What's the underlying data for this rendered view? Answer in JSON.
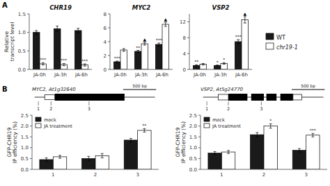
{
  "chart_data": [
    {
      "type": "bar",
      "title": "CHR19",
      "ylabel": "Relative\ntranscript level",
      "categories": [
        "JA-0h",
        "JA-3h",
        "JA-6h"
      ],
      "series": [
        {
          "name": "WT",
          "color": "#1a1a1a",
          "values": [
            1.0,
            1.1,
            1.05
          ],
          "errors": [
            0.05,
            0.07,
            0.06
          ]
        },
        {
          "name": "chr19-1",
          "color": "#ffffff",
          "values": [
            0.15,
            0.13,
            0.12
          ],
          "errors": [
            0.03,
            0.03,
            0.03
          ],
          "annotations": [
            "***",
            "***",
            "***"
          ]
        }
      ],
      "ylim": [
        0,
        1.5
      ],
      "yticks": [
        {
          "value": 0,
          "label": "0.0"
        },
        0.5,
        {
          "value": 1.0,
          "label": "1.0"
        },
        1.5
      ],
      "legend": "right",
      "annotations": [
        {
          "text": "A",
          "kind": "panel"
        }
      ]
    },
    {
      "type": "bar",
      "title": "MYC2",
      "categories": [
        "JA-0h",
        "JA-3h",
        "JA-6h"
      ],
      "series": [
        {
          "color": "#1a1a1a",
          "values": [
            1.1,
            2.6,
            3.6
          ],
          "errors": [
            0.1,
            0.15,
            0.2
          ],
          "annotations": [
            "***",
            "**",
            "***"
          ]
        },
        {
          "color": "#ffffff",
          "values": [
            2.8,
            3.7,
            6.5
          ],
          "errors": [
            0.2,
            0.2,
            0.3
          ],
          "annotations": [
            null,
            "▲",
            "▲"
          ]
        }
      ],
      "ylim": [
        0,
        8
      ],
      "yticks": [
        0,
        2,
        4,
        6,
        8
      ]
    },
    {
      "type": "bar",
      "title": "VSP2",
      "categories": [
        "JA-0h",
        "JA-3h",
        "JA-6h"
      ],
      "series": [
        {
          "color": "#1a1a1a",
          "values": [
            1.0,
            1.0,
            7.0
          ],
          "errors": [
            0.15,
            0.1,
            0.5
          ],
          "annotations": [
            "**",
            "*",
            "***"
          ]
        },
        {
          "color": "#ffffff",
          "values": [
            1.3,
            1.5,
            12.5
          ],
          "errors": [
            0.2,
            0.2,
            0.8
          ],
          "annotations": [
            null,
            "*",
            "▲"
          ]
        }
      ],
      "ylim": [
        0,
        14
      ],
      "yticks": [
        0,
        4,
        8,
        12
      ]
    },
    {
      "type": "bar",
      "ylabel": "GFP-CHR19\nIP efficiency (%)",
      "categories": [
        "1",
        "2",
        "3"
      ],
      "series": [
        {
          "name": "mock",
          "color": "#1a1a1a",
          "values": [
            0.45,
            0.5,
            1.35
          ],
          "errors": [
            0.08,
            0.1,
            0.08
          ]
        },
        {
          "name": "JA treatment",
          "color": "#ffffff",
          "values": [
            0.58,
            0.63,
            1.8
          ],
          "errors": [
            0.07,
            0.1,
            0.08
          ],
          "annotations": [
            null,
            null,
            "**"
          ]
        }
      ],
      "ylim": [
        0,
        2.5
      ],
      "yticks": [
        {
          "value": 0,
          "label": "0.0"
        },
        0.5,
        {
          "value": 1.0,
          "label": "1.0"
        },
        1.5,
        {
          "value": 2.0,
          "label": "2.0"
        },
        2.5
      ],
      "legend": "upper left",
      "annotations": [
        {
          "text": "B",
          "kind": "panel"
        },
        {
          "text": "MYC2, At1g32640",
          "kind": "gene"
        },
        {
          "text": "500 bp",
          "kind": "scale"
        }
      ]
    },
    {
      "type": "bar",
      "ylabel": "GFP-CHR19\nIP efficiency (%)",
      "categories": [
        "1",
        "2",
        "3"
      ],
      "series": [
        {
          "name": "mock",
          "color": "#1a1a1a",
          "values": [
            0.75,
            1.6,
            0.88
          ],
          "errors": [
            0.07,
            0.1,
            0.08
          ]
        },
        {
          "name": "JA treatment",
          "color": "#ffffff",
          "values": [
            0.8,
            2.0,
            1.58
          ],
          "errors": [
            0.07,
            0.1,
            0.08
          ],
          "annotations": [
            null,
            "*",
            "***"
          ]
        }
      ],
      "ylim": [
        0,
        2.5
      ],
      "yticks": [
        {
          "value": 0,
          "label": "0.0"
        },
        0.5,
        {
          "value": 1.0,
          "label": "1.0"
        },
        1.5,
        {
          "value": 2.0,
          "label": "2.0"
        },
        2.5
      ],
      "legend": "upper left",
      "annotations": [
        {
          "text": "VSP2, At5g24770",
          "kind": "gene"
        },
        {
          "text": "500 bp",
          "kind": "scale"
        }
      ]
    }
  ]
}
